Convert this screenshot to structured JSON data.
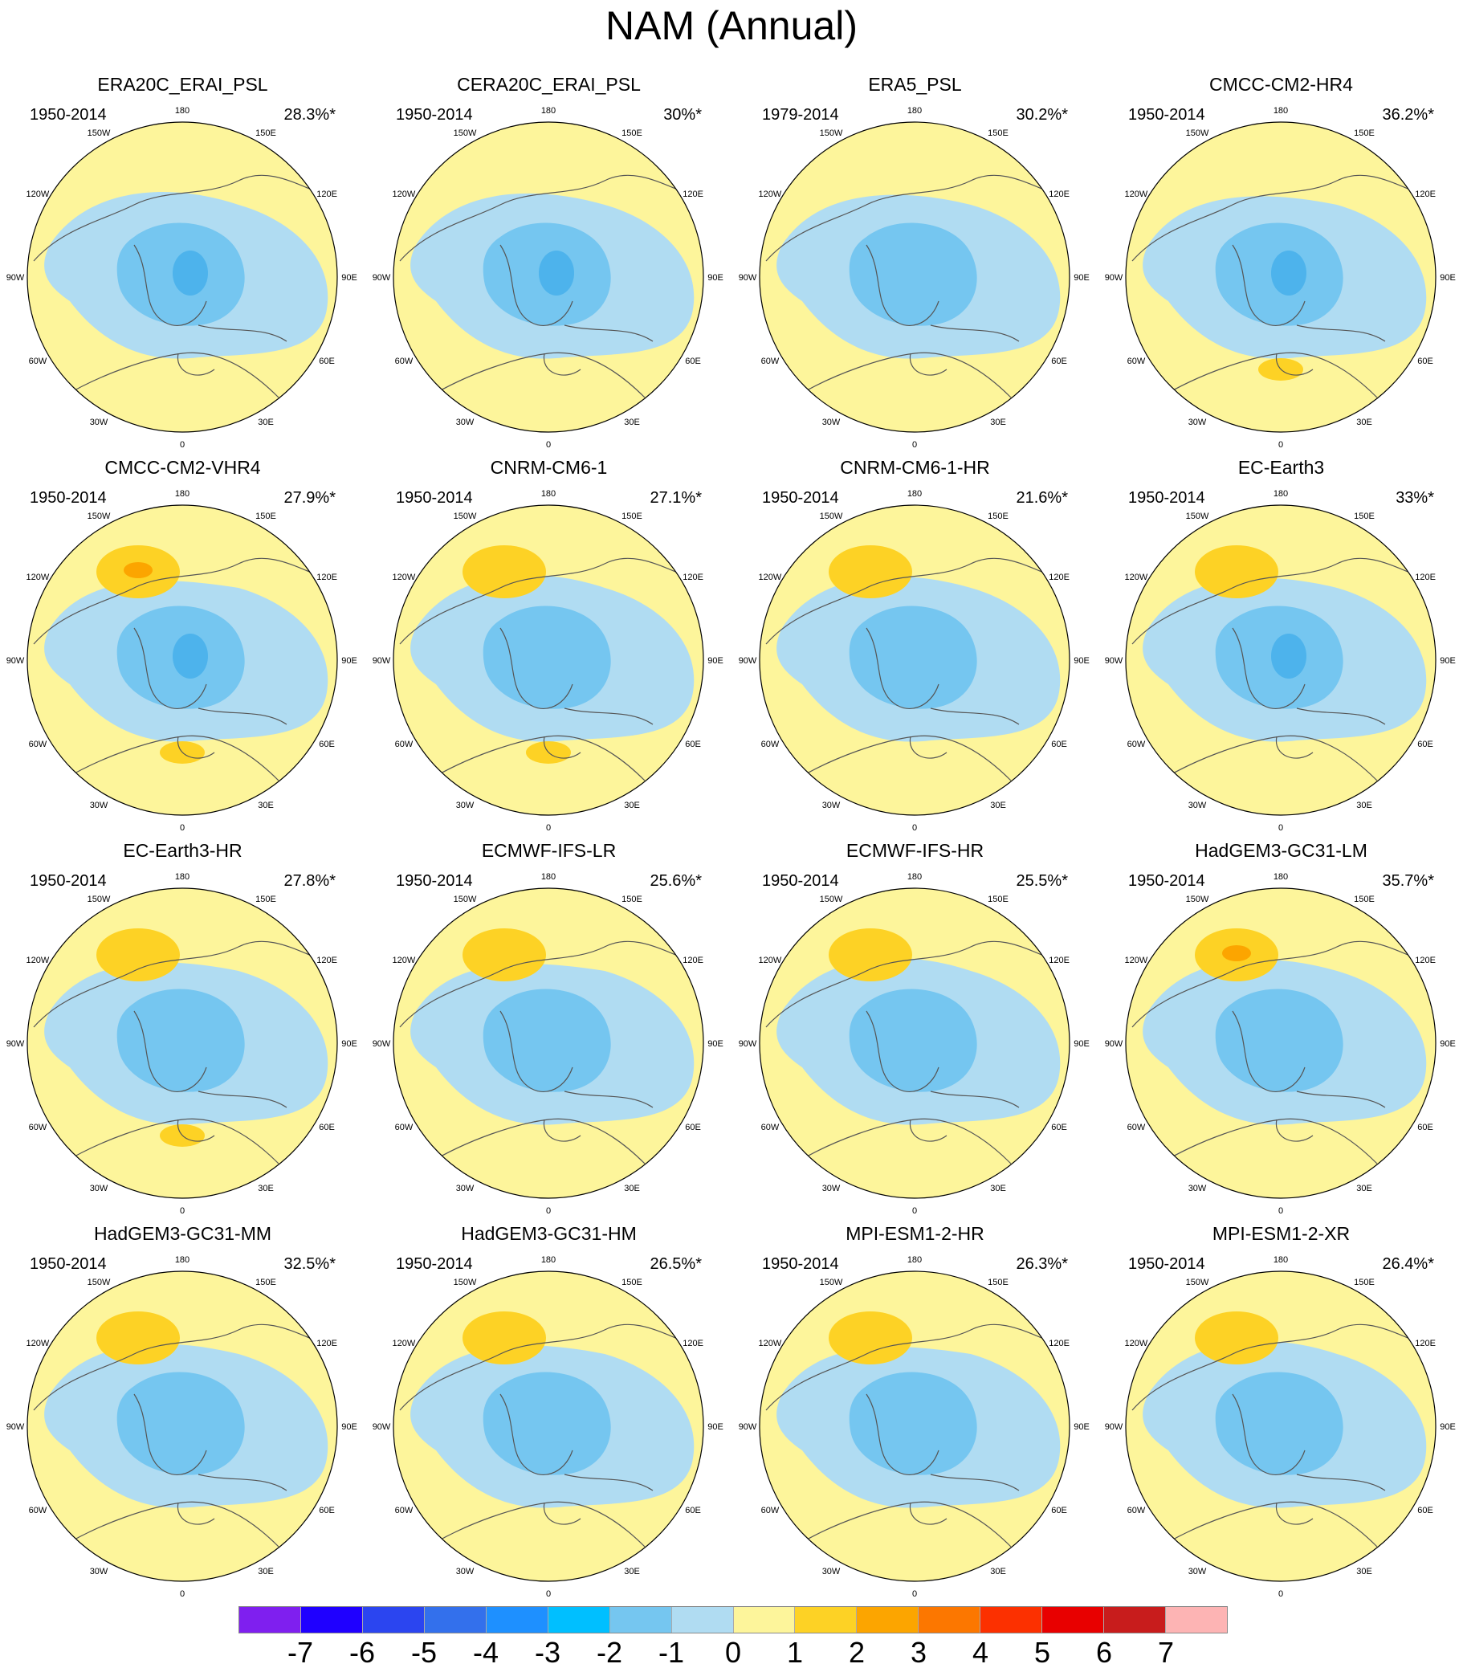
{
  "title": "NAM (Annual)",
  "lon_labels": [
    "180",
    "150E",
    "120E",
    "90E",
    "60E",
    "30E",
    "0",
    "30W",
    "60W",
    "90W",
    "120W",
    "150W"
  ],
  "panels": [
    {
      "name": "ERA20C_ERAI_PSL",
      "period": "1950-2014",
      "percent": "28.3%*"
    },
    {
      "name": "CERA20C_ERAI_PSL",
      "period": "1950-2014",
      "percent": "30%*"
    },
    {
      "name": "ERA5_PSL",
      "period": "1979-2014",
      "percent": "30.2%*"
    },
    {
      "name": "CMCC-CM2-HR4",
      "period": "1950-2014",
      "percent": "36.2%*"
    },
    {
      "name": "CMCC-CM2-VHR4",
      "period": "1950-2014",
      "percent": "27.9%*"
    },
    {
      "name": "CNRM-CM6-1",
      "period": "1950-2014",
      "percent": "27.1%*"
    },
    {
      "name": "CNRM-CM6-1-HR",
      "period": "1950-2014",
      "percent": "21.6%*"
    },
    {
      "name": "EC-Earth3",
      "period": "1950-2014",
      "percent": "33%*"
    },
    {
      "name": "EC-Earth3-HR",
      "period": "1950-2014",
      "percent": "27.8%*"
    },
    {
      "name": "ECMWF-IFS-LR",
      "period": "1950-2014",
      "percent": "25.6%*"
    },
    {
      "name": "ECMWF-IFS-HR",
      "period": "1950-2014",
      "percent": "25.5%*"
    },
    {
      "name": "HadGEM3-GC31-LM",
      "period": "1950-2014",
      "percent": "35.7%*"
    },
    {
      "name": "HadGEM3-GC31-MM",
      "period": "1950-2014",
      "percent": "32.5%*"
    },
    {
      "name": "HadGEM3-GC31-HM",
      "period": "1950-2014",
      "percent": "26.5%*"
    },
    {
      "name": "MPI-ESM1-2-HR",
      "period": "1950-2014",
      "percent": "26.3%*"
    },
    {
      "name": "MPI-ESM1-2-XR",
      "period": "1950-2014",
      "percent": "26.4%*"
    }
  ],
  "colorbar": {
    "colors": [
      "#7f1fef",
      "#1f00ff",
      "#2b45f0",
      "#3370ec",
      "#1e90ff",
      "#00bfff",
      "#75c6f0",
      "#b0dcf2",
      "#fdf59b",
      "#fdd225",
      "#fca500",
      "#fc7700",
      "#fc3000",
      "#e80000",
      "#c81c1c",
      "#fdb4b4"
    ],
    "labels": [
      "-7",
      "-6",
      "-5",
      "-4",
      "-3",
      "-2",
      "-1",
      "0",
      "1",
      "2",
      "3",
      "4",
      "5",
      "6",
      "7"
    ]
  },
  "palette": {
    "positive_1": "#fdf59b",
    "negative_1": "#b0dcf2",
    "negative_2": "#75c6f0",
    "negative_3": "#4db3ec",
    "positive_2": "#fdd225",
    "positive_3": "#fca500",
    "coast": "#555555"
  }
}
